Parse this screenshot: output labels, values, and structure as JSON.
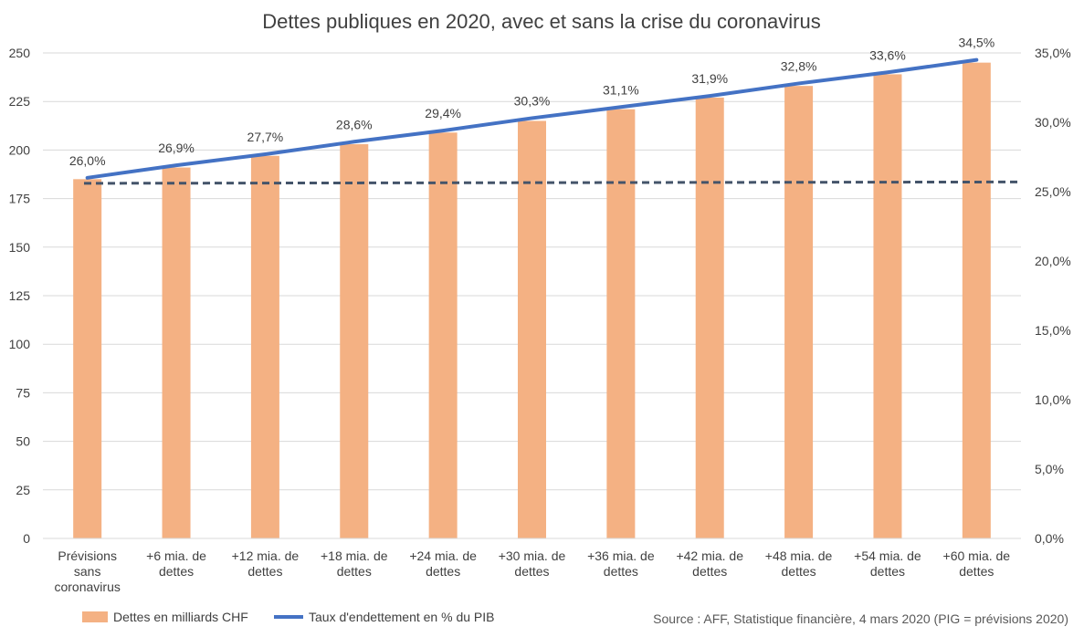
{
  "chart_data": {
    "type": "bar",
    "title": "Dettes publiques en 2020, avec et sans la crise du coronavirus",
    "categories": [
      [
        "Prévisions",
        "sans",
        "coronavirus"
      ],
      [
        "+6 mia. de",
        "dettes"
      ],
      [
        "+12 mia. de",
        "dettes"
      ],
      [
        "+18 mia. de",
        "dettes"
      ],
      [
        "+24 mia. de",
        "dettes"
      ],
      [
        "+30 mia. de",
        "dettes"
      ],
      [
        "+36 mia. de",
        "dettes"
      ],
      [
        "+42 mia. de",
        "dettes"
      ],
      [
        "+48 mia. de",
        "dettes"
      ],
      [
        "+54 mia. de",
        "dettes"
      ],
      [
        "+60 mia. de",
        "dettes"
      ]
    ],
    "series": [
      {
        "name": "Dettes en milliards CHF",
        "type": "bar",
        "axis": "left",
        "color": "#F4B183",
        "values": [
          185,
          191,
          197,
          203,
          209,
          215,
          221,
          227,
          233,
          239,
          245
        ]
      },
      {
        "name": "Taux d'endettement en % du PIB",
        "type": "line",
        "axis": "right",
        "color": "#4472C4",
        "values": [
          26.0,
          26.9,
          27.7,
          28.6,
          29.4,
          30.3,
          31.1,
          31.9,
          32.8,
          33.6,
          34.5
        ],
        "labels": [
          "26,0%",
          "26,9%",
          "27,7%",
          "28,6%",
          "29,4%",
          "30,3%",
          "31,1%",
          "31,9%",
          "32,8%",
          "33,6%",
          "34,5%"
        ]
      }
    ],
    "reference_line": {
      "style": "dashed",
      "color": "#44546A",
      "axis": "right",
      "value": 25.6
    },
    "y_left": {
      "ylim": [
        0,
        250
      ],
      "ticks": [
        "0",
        "25",
        "50",
        "75",
        "100",
        "125",
        "150",
        "175",
        "200",
        "225",
        "250"
      ]
    },
    "y_right": {
      "ylim": [
        0,
        35
      ],
      "ticks": [
        "0,0%",
        "5,0%",
        "10,0%",
        "15,0%",
        "20,0%",
        "25,0%",
        "30,0%",
        "35,0%"
      ]
    },
    "grid": true,
    "legend": "bottom-left",
    "source": "Source : AFF, Statistique financière, 4 mars 2020 (PIG = prévisions 2020)"
  }
}
